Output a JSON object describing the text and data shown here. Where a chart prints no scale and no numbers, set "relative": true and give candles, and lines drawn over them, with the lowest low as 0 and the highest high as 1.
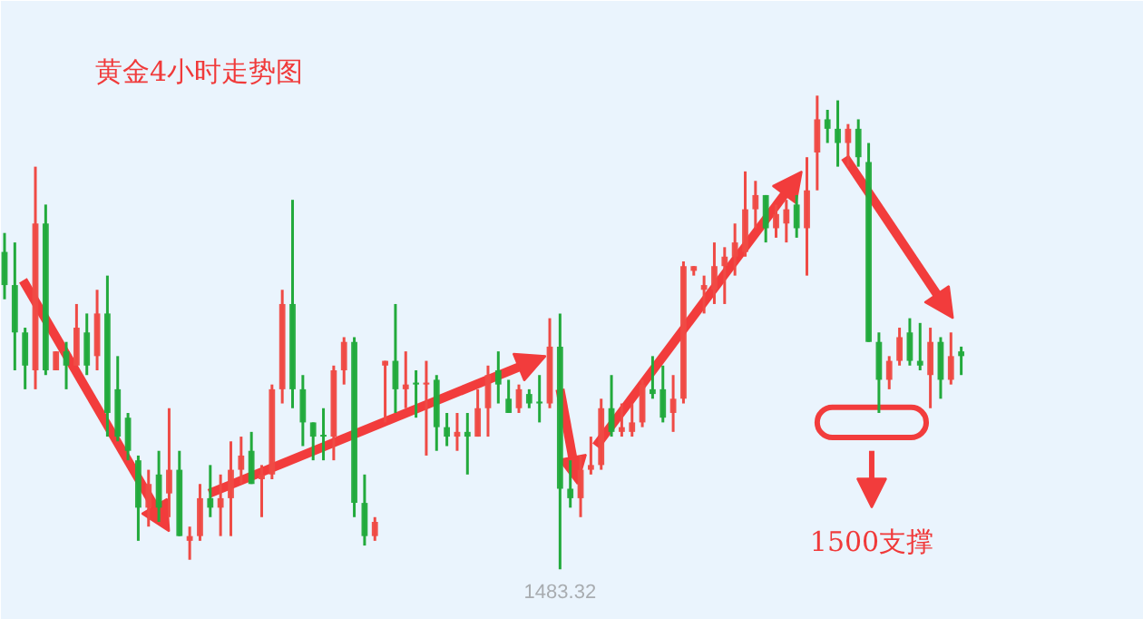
{
  "chart_data": {
    "type": "candlestick",
    "title": "黄金4小时走势图",
    "relative": true,
    "annotations": [
      "1483.32",
      "1500支撑"
    ],
    "categories": [
      null,
      null,
      null,
      null,
      null,
      null,
      null,
      null,
      null,
      null,
      null,
      null,
      null,
      null,
      null,
      null,
      null,
      null,
      null,
      null,
      null,
      null,
      null,
      null,
      null,
      null,
      null,
      null,
      null,
      null,
      null,
      null,
      null,
      null,
      null,
      null,
      null,
      null,
      null,
      null,
      null,
      null,
      null,
      null,
      null,
      null,
      null,
      null,
      null,
      null,
      null,
      null,
      null,
      null,
      null,
      null,
      null,
      null,
      null,
      null,
      null,
      null,
      null,
      null,
      null,
      null,
      null,
      null,
      null,
      null,
      null,
      null,
      null,
      null,
      null,
      null,
      null,
      null,
      null,
      null,
      null,
      null,
      null,
      null,
      null,
      null,
      null,
      null,
      null,
      null,
      null,
      null,
      null,
      null
    ],
    "ohlc": [
      [
        0.67,
        0.71,
        0.57,
        0.6
      ],
      [
        0.6,
        0.69,
        0.42,
        0.5
      ],
      [
        0.5,
        0.51,
        0.38,
        0.43
      ],
      [
        0.42,
        0.85,
        0.38,
        0.73
      ],
      [
        0.73,
        0.77,
        0.41,
        0.42
      ],
      [
        0.42,
        0.46,
        0.42,
        0.46
      ],
      [
        0.46,
        0.48,
        0.38,
        0.43
      ],
      [
        0.43,
        0.56,
        0.43,
        0.51
      ],
      [
        0.5,
        0.54,
        0.41,
        0.43
      ],
      [
        0.45,
        0.59,
        0.42,
        0.54
      ],
      [
        0.54,
        0.62,
        0.28,
        0.33
      ],
      [
        0.38,
        0.45,
        0.27,
        0.28
      ],
      [
        0.32,
        0.33,
        0.23,
        0.25
      ],
      [
        0.23,
        0.24,
        0.06,
        0.13
      ],
      [
        0.13,
        0.21,
        0.09,
        0.18
      ],
      [
        0.2,
        0.25,
        0.1,
        0.13
      ],
      [
        0.16,
        0.34,
        0.11,
        0.21
      ],
      [
        0.21,
        0.25,
        0.07,
        0.07
      ],
      [
        0.06,
        0.09,
        0.02,
        0.07
      ],
      [
        0.07,
        0.18,
        0.06,
        0.15
      ],
      [
        0.15,
        0.22,
        0.11,
        0.13
      ],
      [
        0.13,
        0.2,
        0.07,
        0.15
      ],
      [
        0.15,
        0.27,
        0.07,
        0.21
      ],
      [
        0.21,
        0.28,
        0.18,
        0.24
      ],
      [
        0.25,
        0.29,
        0.18,
        0.18
      ],
      [
        0.19,
        0.22,
        0.11,
        0.2
      ],
      [
        0.2,
        0.39,
        0.19,
        0.38
      ],
      [
        0.38,
        0.59,
        0.35,
        0.56
      ],
      [
        0.56,
        0.78,
        0.34,
        0.38
      ],
      [
        0.38,
        0.41,
        0.26,
        0.31
      ],
      [
        0.31,
        0.31,
        0.23,
        0.28
      ],
      [
        0.28,
        0.34,
        0.23,
        0.28
      ],
      [
        0.28,
        0.43,
        0.23,
        0.42
      ],
      [
        0.42,
        0.49,
        0.39,
        0.48
      ],
      [
        0.48,
        0.49,
        0.11,
        0.14
      ],
      [
        0.14,
        0.2,
        0.05,
        0.07
      ],
      [
        0.07,
        0.11,
        0.06,
        0.1
      ],
      [
        0.43,
        0.44,
        0.31,
        0.44
      ],
      [
        0.44,
        0.56,
        0.33,
        0.38
      ],
      [
        0.38,
        0.46,
        0.34,
        0.39
      ],
      [
        0.39,
        0.42,
        0.32,
        0.39
      ],
      [
        0.39,
        0.44,
        0.24,
        0.39
      ],
      [
        0.4,
        0.41,
        0.25,
        0.3
      ],
      [
        0.3,
        0.33,
        0.26,
        0.28
      ],
      [
        0.28,
        0.33,
        0.25,
        0.29
      ],
      [
        0.29,
        0.33,
        0.2,
        0.28
      ],
      [
        0.28,
        0.38,
        0.28,
        0.34
      ],
      [
        0.34,
        0.43,
        0.28,
        0.41
      ],
      [
        0.42,
        0.46,
        0.35,
        0.39
      ],
      [
        0.36,
        0.4,
        0.33,
        0.33
      ],
      [
        0.34,
        0.39,
        0.33,
        0.38
      ],
      [
        0.37,
        0.38,
        0.34,
        0.35
      ],
      [
        0.35,
        0.41,
        0.31,
        0.35
      ],
      [
        0.35,
        0.53,
        0.34,
        0.47
      ],
      [
        0.47,
        0.54,
        0,
        0.17
      ],
      [
        0.17,
        0.23,
        0.13,
        0.15
      ],
      [
        0.15,
        0.24,
        0.11,
        0.21
      ],
      [
        0.21,
        0.28,
        0.2,
        0.22
      ],
      [
        0.22,
        0.36,
        0.21,
        0.34
      ],
      [
        0.34,
        0.41,
        0.28,
        0.29
      ],
      [
        0.29,
        0.35,
        0.28,
        0.3
      ],
      [
        0.29,
        0.35,
        0.28,
        0.31
      ],
      [
        0.31,
        0.4,
        0.3,
        0.39
      ],
      [
        0.38,
        0.45,
        0.36,
        0.37
      ],
      [
        0.38,
        0.43,
        0.31,
        0.32
      ],
      [
        0.33,
        0.41,
        0.29,
        0.36
      ],
      [
        0.36,
        0.65,
        0.35,
        0.64
      ],
      [
        0.63,
        0.64,
        0.62,
        0.64
      ],
      [
        0.59,
        0.62,
        0.54,
        0.6
      ],
      [
        0.59,
        0.69,
        0.56,
        0.64
      ],
      [
        0.64,
        0.68,
        0.56,
        0.66
      ],
      [
        0.66,
        0.73,
        0.62,
        0.69
      ],
      [
        0.67,
        0.84,
        0.66,
        0.76
      ],
      [
        0.76,
        0.82,
        0.72,
        0.79
      ],
      [
        0.79,
        0.79,
        0.69,
        0.72
      ],
      [
        0.72,
        0.77,
        0.7,
        0.75
      ],
      [
        0.73,
        0.78,
        0.69,
        0.76
      ],
      [
        0.77,
        0.79,
        0.7,
        0.72
      ],
      [
        0.72,
        0.87,
        0.62,
        0.8
      ],
      [
        0.88,
        1,
        0.8,
        0.95
      ],
      [
        0.95,
        0.97,
        0.9,
        0.93
      ],
      [
        0.93,
        0.99,
        0.85,
        0.9
      ],
      [
        0.9,
        0.94,
        0.85,
        0.93
      ],
      [
        0.93,
        0.95,
        0.85,
        0.87
      ],
      [
        0.86,
        0.9,
        0.48,
        0.48
      ],
      [
        0.48,
        0.5,
        0.33,
        0.4
      ],
      [
        0.4,
        0.45,
        0.38,
        0.44
      ],
      [
        0.44,
        0.51,
        0.43,
        0.49
      ],
      [
        0.5,
        0.53,
        0.43,
        0.44
      ],
      [
        0.44,
        0.52,
        0.42,
        0.43
      ],
      [
        0.41,
        0.51,
        0.34,
        0.48
      ],
      [
        0.48,
        0.49,
        0.36,
        0.4
      ],
      [
        0.4,
        0.5,
        0.39,
        0.45
      ],
      [
        0.46,
        0.47,
        0.41,
        0.45
      ]
    ],
    "colors": [
      "#22aa3c",
      "#22aa3c",
      "#22aa3c",
      "#ef4a45",
      "#22aa3c",
      "#ef4a45",
      "#22aa3c",
      "#ef4a45",
      "#22aa3c",
      "#ef4a45",
      "#22aa3c",
      "#22aa3c",
      "#22aa3c",
      "#22aa3c",
      "#ef4a45",
      "#22aa3c",
      "#ef4a45",
      "#22aa3c",
      "#ef4a45",
      "#ef4a45",
      "#22aa3c",
      "#ef4a45",
      "#ef4a45",
      "#ef4a45",
      "#22aa3c",
      "#ef4a45",
      "#ef4a45",
      "#ef4a45",
      "#22aa3c",
      "#22aa3c",
      "#22aa3c",
      "#22aa3c",
      "#ef4a45",
      "#ef4a45",
      "#22aa3c",
      "#22aa3c",
      "#ef4a45",
      "#ef4a45",
      "#22aa3c",
      "#ef4a45",
      "#22aa3c",
      "#ef4a45",
      "#22aa3c",
      "#22aa3c",
      "#ef4a45",
      "#22aa3c",
      "#ef4a45",
      "#ef4a45",
      "#22aa3c",
      "#22aa3c",
      "#ef4a45",
      "#22aa3c",
      "#22aa3c",
      "#ef4a45",
      "#22aa3c",
      "#22aa3c",
      "#ef4a45",
      "#ef4a45",
      "#ef4a45",
      "#22aa3c",
      "#ef4a45",
      "#ef4a45",
      "#ef4a45",
      "#22aa3c",
      "#22aa3c",
      "#ef4a45",
      "#ef4a45",
      "#ef4a45",
      "#ef4a45",
      "#ef4a45",
      "#ef4a45",
      "#ef4a45",
      "#ef4a45",
      "#ef4a45",
      "#22aa3c",
      "#ef4a45",
      "#ef4a45",
      "#22aa3c",
      "#ef4a45",
      "#ef4a45",
      "#22aa3c",
      "#22aa3c",
      "#ef4a45",
      "#22aa3c",
      "#22aa3c",
      "#22aa3c",
      "#ef4a45",
      "#ef4a45",
      "#22aa3c",
      "#22aa3c",
      "#ef4a45",
      "#22aa3c",
      "#ef4a45",
      "#22aa3c"
    ]
  }
}
